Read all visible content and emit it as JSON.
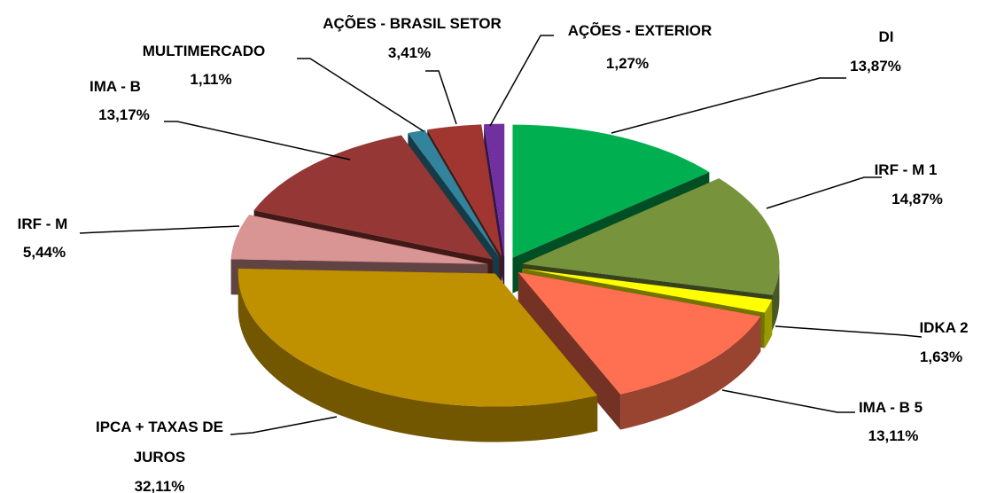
{
  "chart_data": {
    "type": "pie",
    "categories": [
      "DI",
      "IRF - M 1",
      "IDKA 2",
      "IMA - B 5",
      "IPCA + TAXAS DE JUROS",
      "IRF - M",
      "IMA - B",
      "MULTIMERCADO",
      "AÇÕES - BRASIL SETOR",
      "AÇÕES - EXTERIOR"
    ],
    "values": [
      13.87,
      14.87,
      1.63,
      13.11,
      32.11,
      5.44,
      13.17,
      1.11,
      3.41,
      1.27
    ],
    "value_labels": [
      "13,87%",
      "14,87%",
      "1,63%",
      "13,11%",
      "32,11%",
      "5,44%",
      "13,17%",
      "1,11%",
      "3,41%",
      "1,27%"
    ],
    "colors": [
      "#00b050",
      "#77933c",
      "#ffff00",
      "#ff6f51",
      "#bf9000",
      "#d99594",
      "#953735",
      "#31849b",
      "#a0362f",
      "#7030a0"
    ]
  }
}
